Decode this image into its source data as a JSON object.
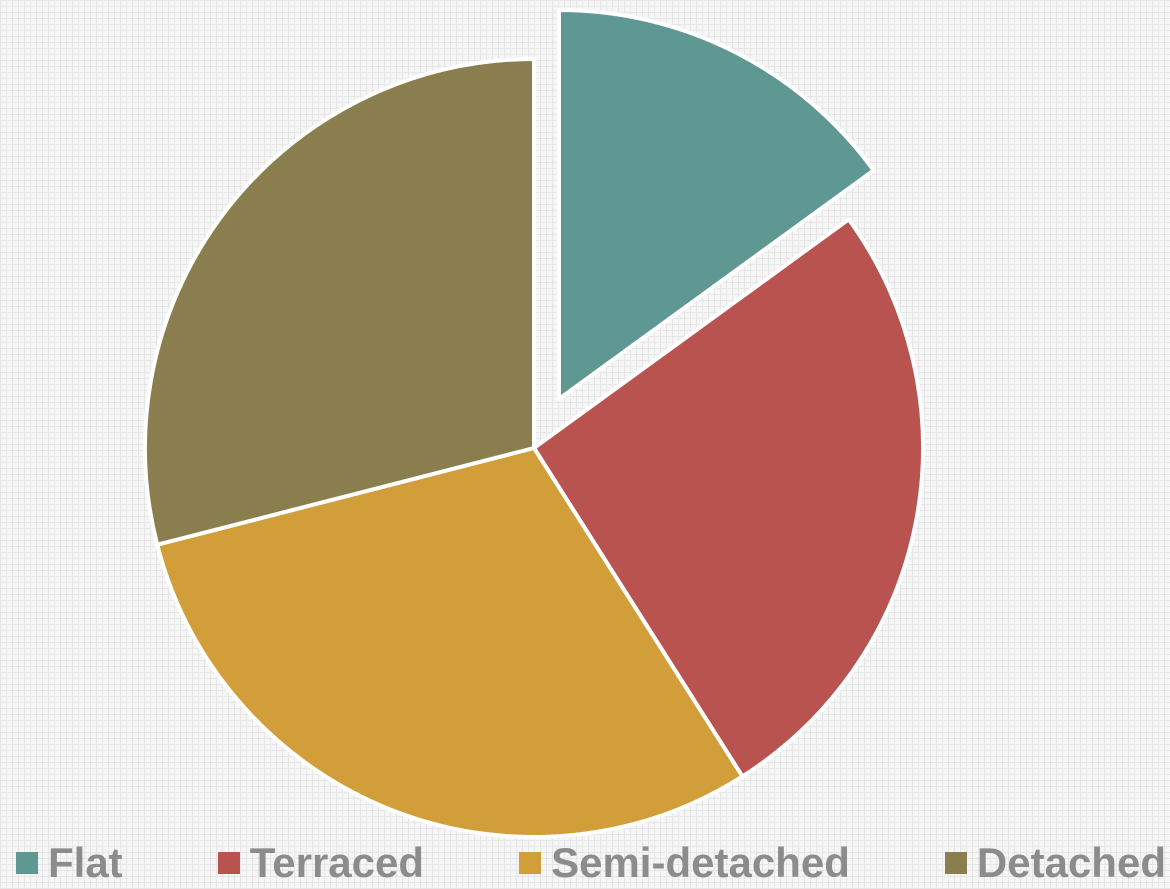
{
  "chart_data": {
    "type": "pie",
    "categories": [
      "Flat",
      "Terraced",
      "Semi-detached",
      "Detached"
    ],
    "values": [
      15,
      26,
      30,
      29
    ],
    "colors": [
      "#5f9792",
      "#b9534f",
      "#d19e3a",
      "#8a7e4e"
    ],
    "exploded": [
      true,
      false,
      false,
      false
    ],
    "start_angle": 0,
    "direction": "clockwise"
  }
}
